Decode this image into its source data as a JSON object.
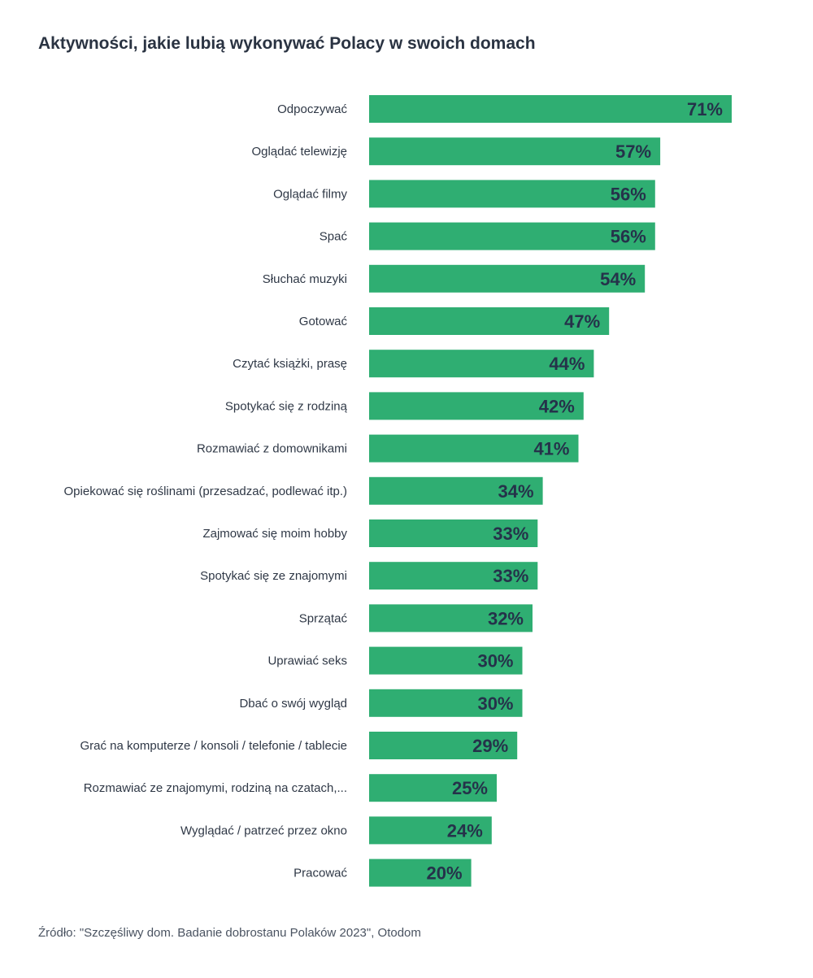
{
  "title": "Aktywności, jakie lubią wykonywać Polacy w swoich domach",
  "source": "Źródło: \"Szczęśliwy dom. Badanie dobrostanu Polaków 2023\", Otodom",
  "colors": {
    "bar": "#2fae72",
    "value_text": "#25324a",
    "label_text": "#2f3846"
  },
  "chart_data": {
    "type": "bar",
    "orientation": "horizontal",
    "title": "Aktywności, jakie lubią wykonywać Polacy w swoich domach",
    "xlabel": "",
    "ylabel": "",
    "unit": "%",
    "grid": false,
    "legend": "none",
    "categories": [
      "Odpoczywać",
      "Oglądać telewizję",
      "Oglądać filmy",
      "Spać",
      "Słuchać muzyki",
      "Gotować",
      "Czytać książki, prasę",
      "Spotykać się z rodziną",
      "Rozmawiać z domownikami",
      "Opiekować się roślinami (przesadzać, podlewać itp.)",
      "Zajmować się moim hobby",
      "Spotykać się ze znajomymi",
      "Sprzątać",
      "Uprawiać seks",
      "Dbać o swój wygląd",
      "Grać na komputerze / konsoli / telefonie / tablecie",
      "Rozmawiać ze znajomymi, rodziną na czatach,...",
      "Wyglądać / patrzeć przez okno",
      "Pracować"
    ],
    "values": [
      71,
      57,
      56,
      56,
      54,
      47,
      44,
      42,
      41,
      34,
      33,
      33,
      32,
      30,
      30,
      29,
      25,
      24,
      20
    ],
    "value_labels": [
      "71%",
      "57%",
      "56%",
      "56%",
      "54%",
      "47%",
      "44%",
      "42%",
      "41%",
      "34%",
      "33%",
      "33%",
      "32%",
      "30%",
      "30%",
      "29%",
      "25%",
      "24%",
      "20%"
    ]
  }
}
